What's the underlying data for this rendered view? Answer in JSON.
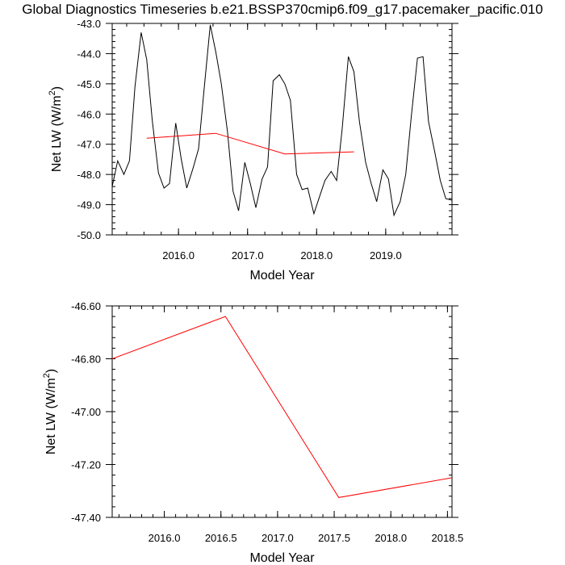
{
  "title": "Global Diagnostics Timeseries b.e21.BSSP370cmip6.f09_g17.pacemaker_pacific.010",
  "chart_data": [
    {
      "type": "line",
      "xlabel": "Model Year",
      "ylabel": "Net LW (W/m",
      "ylabel_sup": "2",
      "ylabel_close": ")",
      "xlim": [
        2015.04,
        2019.96
      ],
      "ylim": [
        -50.0,
        -43.0
      ],
      "xticks": [
        2016.0,
        2017.0,
        2018.0,
        2019.0
      ],
      "xtick_labels": [
        "2016.0",
        "2017.0",
        "2018.0",
        "2019.0"
      ],
      "yticks": [
        -50.0,
        -49.0,
        -48.0,
        -47.0,
        -46.0,
        -45.0,
        -44.0,
        -43.0
      ],
      "ytick_labels": [
        "-50.0",
        "-49.0",
        "-48.0",
        "-47.0",
        "-46.0",
        "-45.0",
        "-44.0",
        "-43.0"
      ],
      "series": [
        {
          "color": "#000000",
          "x": [
            2015.04,
            2015.12,
            2015.21,
            2015.29,
            2015.37,
            2015.46,
            2015.54,
            2015.62,
            2015.71,
            2015.79,
            2015.87,
            2015.96,
            2016.04,
            2016.12,
            2016.21,
            2016.29,
            2016.37,
            2016.46,
            2016.54,
            2016.62,
            2016.71,
            2016.79,
            2016.87,
            2016.96,
            2017.04,
            2017.12,
            2017.21,
            2017.29,
            2017.37,
            2017.46,
            2017.54,
            2017.62,
            2017.71,
            2017.79,
            2017.87,
            2017.96,
            2018.04,
            2018.12,
            2018.21,
            2018.29,
            2018.37,
            2018.46,
            2018.54,
            2018.62,
            2018.71,
            2018.79,
            2018.87,
            2018.96,
            2019.04,
            2019.12,
            2019.21,
            2019.29,
            2019.37,
            2019.46,
            2019.54,
            2019.62,
            2019.71,
            2019.79,
            2019.87,
            2019.96
          ],
          "y": [
            -48.4,
            -47.55,
            -48.0,
            -47.55,
            -45.1,
            -43.3,
            -44.2,
            -46.2,
            -47.95,
            -48.45,
            -48.3,
            -46.3,
            -47.5,
            -48.45,
            -47.8,
            -47.15,
            -45.2,
            -43.05,
            -43.95,
            -45.0,
            -46.6,
            -48.55,
            -49.2,
            -47.6,
            -48.3,
            -49.1,
            -48.15,
            -47.75,
            -44.9,
            -44.7,
            -45.0,
            -45.55,
            -48.0,
            -48.5,
            -48.45,
            -49.3,
            -48.75,
            -48.2,
            -47.9,
            -48.2,
            -46.5,
            -44.1,
            -44.6,
            -46.25,
            -47.6,
            -48.3,
            -48.9,
            -47.85,
            -48.15,
            -49.35,
            -48.9,
            -48.0,
            -46.1,
            -44.15,
            -44.1,
            -46.25,
            -47.25,
            -48.2,
            -48.8,
            -48.85
          ]
        },
        {
          "color": "#ff0000",
          "x": [
            2015.54,
            2016.54,
            2017.54,
            2018.54
          ],
          "y": [
            -46.8,
            -46.64,
            -47.32,
            -47.25
          ]
        }
      ]
    },
    {
      "type": "line",
      "xlabel": "Model Year",
      "ylabel": "Net LW (W/m",
      "ylabel_sup": "2",
      "ylabel_close": ")",
      "xlim": [
        2015.54,
        2018.54
      ],
      "ylim": [
        -47.4,
        -46.6
      ],
      "xticks": [
        2016.0,
        2016.5,
        2017.0,
        2017.5,
        2018.0,
        2018.5
      ],
      "xtick_labels": [
        "2016.0",
        "2016.5",
        "2017.0",
        "2017.5",
        "2018.0",
        "2018.5"
      ],
      "yticks": [
        -47.4,
        -47.2,
        -47.0,
        -46.8,
        -46.6
      ],
      "ytick_labels": [
        "-47.40",
        "-47.20",
        "-47.00",
        "-46.80",
        "-46.60"
      ],
      "series": [
        {
          "color": "#ff0000",
          "x": [
            2015.54,
            2016.54,
            2017.54,
            2018.54
          ],
          "y": [
            -46.8,
            -46.64,
            -47.325,
            -47.25
          ]
        }
      ]
    }
  ]
}
